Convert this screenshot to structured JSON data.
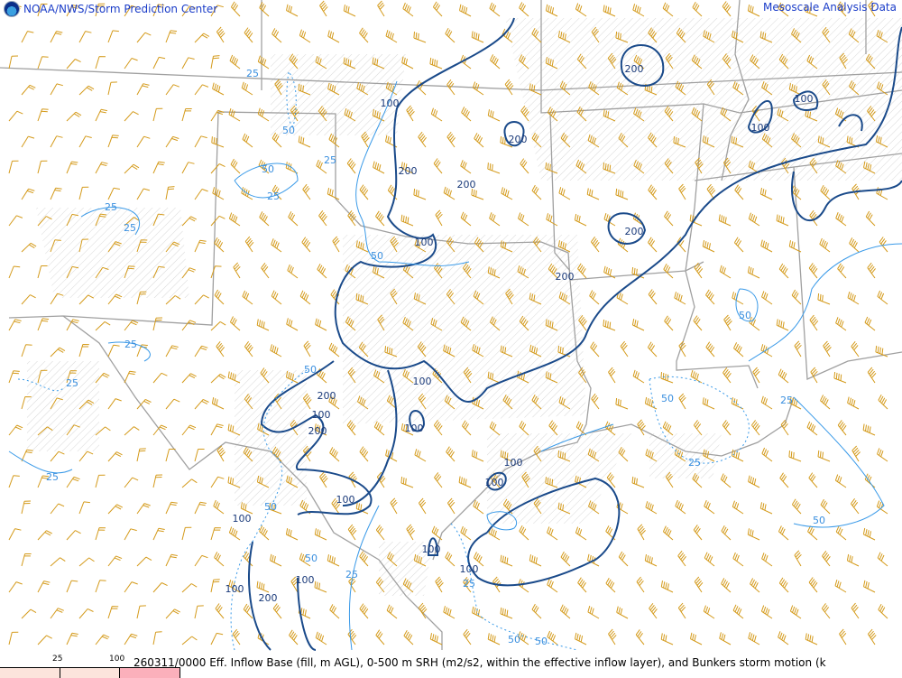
{
  "header": {
    "left_title": "NOAA/NWS/Storm Prediction Center",
    "right_title": "Mesoscale Analysis Data",
    "logo_icon": "noaa-logo-icon"
  },
  "footer": {
    "caption": "260311/0000 Eff. Inflow Base (fill, m AGL), 0-500 m SRH (m2/s2, within the effective inflow layer), and Bunkers storm motion (k",
    "scale_ticks": [
      "25",
      "100"
    ],
    "scale_colors": [
      "#fce4dc",
      "#fce4dc",
      "#fbb0bb"
    ]
  },
  "colors": {
    "srh_high": "#1a4a8a",
    "srh_low": "#3a9ae8",
    "barbs": "#d49a1a",
    "borders": "#a0a0a0",
    "hatch": "#d8d8d8"
  },
  "contour_labels": [
    "100",
    "200",
    "200",
    "100",
    "200",
    "200",
    "100",
    "100",
    "100",
    "100",
    "200",
    "100",
    "200",
    "100",
    "200",
    "100",
    "100",
    "200",
    "100",
    "100",
    "100",
    "100",
    "100",
    "200",
    "25",
    "50",
    "50",
    "25",
    "25",
    "25",
    "50",
    "25",
    "25",
    "50",
    "25",
    "50",
    "25",
    "50",
    "25",
    "50",
    "25",
    "50",
    "50",
    "25",
    "25",
    "50",
    "50"
  ]
}
